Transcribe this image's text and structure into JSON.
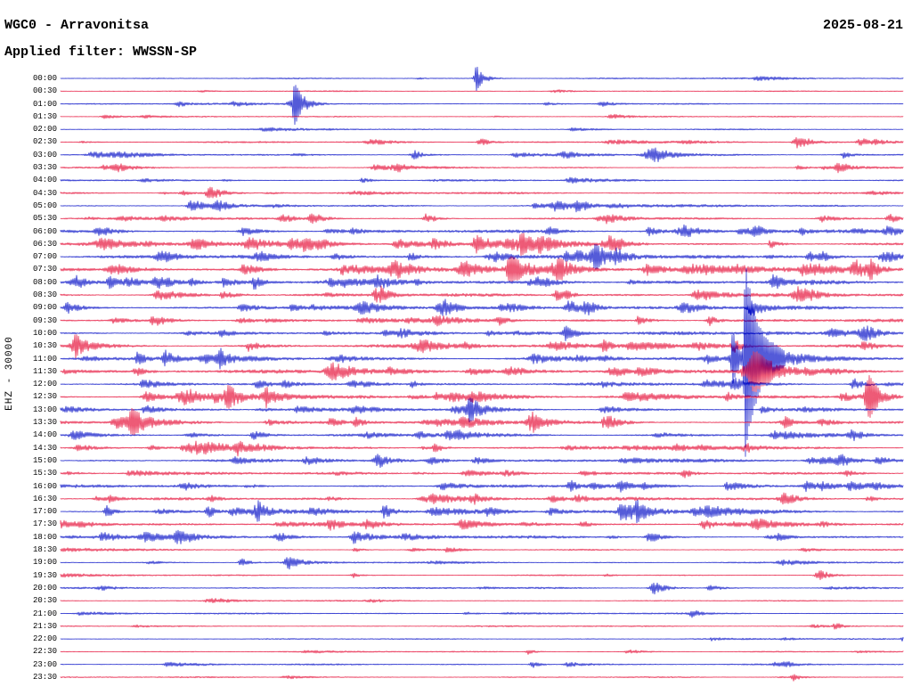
{
  "chart_data": {
    "type": "line",
    "subtype": "helicorder-seismogram",
    "title": "WGC0 - Arravonitsa",
    "date": "2025-08-21",
    "filter_label": "Applied filter: WWSSN-SP",
    "ylabel": "EHZ - 30000",
    "row_duration_minutes": 30,
    "rows_count": 48,
    "legend_position": "none",
    "grid": false,
    "colors": {
      "blue": "#0a14c8",
      "red": "#e6143c",
      "text": "#000000",
      "background": "#ffffff"
    },
    "encoding_note": "each row = 30 min trace; n = base noise half-amplitude px; a = count of small random bursts; ev = major events [position_fraction, amplitude_px, attack_px, decay_px]",
    "rows": [
      {
        "t": "00:00",
        "c": "b",
        "n": 0.7,
        "a": 2,
        "ev": [
          [
            0.494,
            15,
            3,
            8
          ]
        ]
      },
      {
        "t": "00:30",
        "c": "r",
        "n": 0.6,
        "a": 2,
        "ev": []
      },
      {
        "t": "01:00",
        "c": "b",
        "n": 0.8,
        "a": 4,
        "ev": [
          [
            0.14,
            3,
            3,
            12
          ],
          [
            0.278,
            22,
            3,
            10
          ]
        ]
      },
      {
        "t": "01:30",
        "c": "r",
        "n": 0.7,
        "a": 3,
        "ev": [
          [
            0.655,
            3,
            5,
            15
          ]
        ]
      },
      {
        "t": "02:00",
        "c": "b",
        "n": 0.7,
        "a": 3,
        "ev": []
      },
      {
        "t": "02:30",
        "c": "r",
        "n": 0.9,
        "a": 6,
        "ev": [
          [
            0.5,
            4,
            5,
            12
          ],
          [
            0.875,
            8,
            5,
            14
          ],
          [
            0.95,
            5,
            4,
            10
          ]
        ]
      },
      {
        "t": "03:00",
        "c": "b",
        "n": 1.0,
        "a": 6,
        "ev": [
          [
            0.42,
            5,
            4,
            10
          ],
          [
            0.705,
            7,
            7,
            16
          ],
          [
            0.93,
            4,
            3,
            8
          ]
        ]
      },
      {
        "t": "03:30",
        "c": "r",
        "n": 0.9,
        "a": 5,
        "ev": [
          [
            0.4,
            4,
            5,
            10
          ],
          [
            0.925,
            6,
            5,
            12
          ]
        ]
      },
      {
        "t": "04:00",
        "c": "b",
        "n": 0.9,
        "a": 5,
        "ev": []
      },
      {
        "t": "04:30",
        "c": "r",
        "n": 1.0,
        "a": 5,
        "ev": [
          [
            0.178,
            8,
            5,
            14
          ]
        ]
      },
      {
        "t": "05:00",
        "c": "b",
        "n": 1.1,
        "a": 6,
        "ev": [
          [
            0.155,
            6,
            4,
            10
          ],
          [
            0.185,
            7,
            4,
            10
          ],
          [
            0.59,
            6,
            5,
            12
          ],
          [
            0.615,
            6,
            4,
            10
          ]
        ]
      },
      {
        "t": "05:30",
        "c": "r",
        "n": 1.1,
        "a": 6,
        "ev": [
          [
            0.265,
            6,
            5,
            12
          ],
          [
            0.3,
            7,
            5,
            12
          ],
          [
            0.435,
            6,
            4,
            10
          ],
          [
            0.985,
            6,
            4,
            8
          ]
        ]
      },
      {
        "t": "06:00",
        "c": "b",
        "n": 1.6,
        "a": 12,
        "ev": [
          [
            0.58,
            5,
            4,
            10
          ],
          [
            0.7,
            5,
            4,
            10
          ],
          [
            0.825,
            6,
            4,
            10
          ]
        ]
      },
      {
        "t": "06:30",
        "c": "r",
        "n": 1.8,
        "a": 14,
        "ev": [
          [
            0.05,
            6,
            7,
            16
          ],
          [
            0.16,
            7,
            7,
            16
          ],
          [
            0.445,
            6,
            5,
            12
          ],
          [
            0.57,
            6,
            5,
            12
          ],
          [
            0.655,
            7,
            5,
            12
          ]
        ]
      },
      {
        "t": "07:00",
        "c": "b",
        "n": 1.8,
        "a": 14,
        "ev": [
          [
            0.635,
            8,
            5,
            12
          ],
          [
            0.66,
            7,
            4,
            10
          ],
          [
            0.905,
            5,
            4,
            10
          ]
        ]
      },
      {
        "t": "07:30",
        "c": "r",
        "n": 2.0,
        "a": 16,
        "ev": [
          [
            0.4,
            9,
            9,
            18
          ],
          [
            0.48,
            9,
            7,
            16
          ],
          [
            0.535,
            7,
            5,
            12
          ],
          [
            0.59,
            6,
            4,
            10
          ],
          [
            0.945,
            9,
            6,
            12
          ],
          [
            0.962,
            8,
            4,
            10
          ]
        ]
      },
      {
        "t": "08:00",
        "c": "b",
        "n": 1.8,
        "a": 14,
        "ev": [
          [
            0.02,
            7,
            7,
            14
          ],
          [
            0.06,
            7,
            5,
            12
          ],
          [
            0.115,
            7,
            5,
            12
          ],
          [
            0.23,
            8,
            3,
            8
          ],
          [
            0.375,
            5,
            3,
            8
          ]
        ]
      },
      {
        "t": "08:30",
        "c": "r",
        "n": 1.5,
        "a": 10,
        "ev": [
          [
            0.375,
            7,
            4,
            10
          ],
          [
            0.59,
            7,
            4,
            10
          ],
          [
            0.875,
            8,
            5,
            12
          ]
        ]
      },
      {
        "t": "09:00",
        "c": "b",
        "n": 1.7,
        "a": 12,
        "ev": [
          [
            0.45,
            9,
            4,
            10
          ],
          [
            0.605,
            9,
            5,
            12
          ],
          [
            0.625,
            8,
            4,
            10
          ],
          [
            0.82,
            6,
            4,
            10
          ]
        ]
      },
      {
        "t": "09:30",
        "c": "r",
        "n": 1.5,
        "a": 10,
        "ev": [
          [
            0.52,
            5,
            3,
            8
          ],
          [
            0.77,
            6,
            3,
            8
          ]
        ]
      },
      {
        "t": "10:00",
        "c": "b",
        "n": 1.6,
        "a": 10,
        "ev": [
          [
            0.6,
            8,
            5,
            12
          ],
          [
            0.955,
            7,
            7,
            16
          ]
        ]
      },
      {
        "t": "10:30",
        "c": "r",
        "n": 1.6,
        "a": 10,
        "ev": [
          [
            0.018,
            12,
            5,
            14
          ],
          [
            0.645,
            7,
            4,
            10
          ],
          [
            0.8,
            6,
            4,
            10
          ]
        ]
      },
      {
        "t": "11:00",
        "c": "b",
        "n": 1.6,
        "a": 12,
        "ev": [
          [
            0.092,
            7,
            3,
            8
          ],
          [
            0.125,
            7,
            3,
            8
          ],
          [
            0.19,
            8,
            3,
            8
          ],
          [
            0.798,
            30,
            2,
            6
          ],
          [
            0.813,
            105,
            2,
            12
          ],
          [
            0.825,
            10,
            8,
            60
          ]
        ]
      },
      {
        "t": "11:30",
        "c": "r",
        "n": 1.7,
        "a": 12,
        "ev": [
          [
            0.09,
            5,
            3,
            8
          ],
          [
            0.824,
            22,
            7,
            26
          ]
        ]
      },
      {
        "t": "12:00",
        "c": "b",
        "n": 1.5,
        "a": 10,
        "ev": [
          [
            0.8,
            6,
            4,
            10
          ]
        ]
      },
      {
        "t": "12:30",
        "c": "r",
        "n": 1.7,
        "a": 12,
        "ev": [
          [
            0.145,
            9,
            6,
            14
          ],
          [
            0.2,
            9,
            5,
            12
          ],
          [
            0.245,
            10,
            6,
            14
          ],
          [
            0.96,
            22,
            5,
            12
          ]
        ]
      },
      {
        "t": "13:00",
        "c": "b",
        "n": 1.5,
        "a": 10,
        "ev": [
          [
            0.486,
            12,
            4,
            14
          ]
        ]
      },
      {
        "t": "13:30",
        "c": "r",
        "n": 1.6,
        "a": 12,
        "ev": [
          [
            0.086,
            8,
            5,
            12
          ],
          [
            0.56,
            9,
            6,
            14
          ],
          [
            0.86,
            6,
            4,
            10
          ]
        ]
      },
      {
        "t": "14:00",
        "c": "b",
        "n": 1.4,
        "a": 10,
        "ev": [
          [
            0.94,
            6,
            4,
            10
          ]
        ]
      },
      {
        "t": "14:30",
        "c": "r",
        "n": 1.4,
        "a": 10,
        "ev": [
          [
            0.21,
            7,
            4,
            10
          ],
          [
            0.445,
            6,
            3,
            8
          ],
          [
            0.73,
            5,
            3,
            8
          ]
        ]
      },
      {
        "t": "15:00",
        "c": "b",
        "n": 1.4,
        "a": 8,
        "ev": [
          [
            0.378,
            8,
            5,
            12
          ],
          [
            0.925,
            6,
            4,
            10
          ]
        ]
      },
      {
        "t": "15:30",
        "c": "r",
        "n": 1.3,
        "a": 8,
        "ev": [
          [
            0.74,
            5,
            3,
            8
          ]
        ]
      },
      {
        "t": "16:00",
        "c": "b",
        "n": 1.5,
        "a": 10,
        "ev": [
          [
            0.605,
            7,
            4,
            10
          ],
          [
            0.665,
            7,
            4,
            10
          ],
          [
            0.885,
            6,
            4,
            10
          ]
        ]
      },
      {
        "t": "16:30",
        "c": "r",
        "n": 1.5,
        "a": 10,
        "ev": [
          [
            0.49,
            5,
            3,
            8
          ],
          [
            0.86,
            5,
            3,
            8
          ]
        ]
      },
      {
        "t": "17:00",
        "c": "b",
        "n": 1.6,
        "a": 12,
        "ev": [
          [
            0.055,
            7,
            3,
            8
          ],
          [
            0.175,
            8,
            3,
            8
          ],
          [
            0.235,
            9,
            4,
            10
          ],
          [
            0.385,
            7,
            4,
            10
          ],
          [
            0.685,
            7,
            4,
            10
          ]
        ]
      },
      {
        "t": "17:30",
        "c": "r",
        "n": 1.5,
        "a": 10,
        "ev": [
          [
            0.32,
            6,
            4,
            10
          ],
          [
            0.765,
            7,
            4,
            10
          ]
        ]
      },
      {
        "t": "18:00",
        "c": "b",
        "n": 1.4,
        "a": 10,
        "ev": [
          [
            0.14,
            7,
            4,
            10
          ],
          [
            0.35,
            6,
            4,
            10
          ],
          [
            0.7,
            7,
            4,
            10
          ]
        ]
      },
      {
        "t": "18:30",
        "c": "r",
        "n": 0.8,
        "a": 4,
        "ev": [
          [
            0.35,
            3,
            3,
            8
          ]
        ]
      },
      {
        "t": "19:00",
        "c": "b",
        "n": 0.9,
        "a": 4,
        "ev": [
          [
            0.215,
            5,
            3,
            8
          ],
          [
            0.27,
            9,
            4,
            12
          ]
        ]
      },
      {
        "t": "19:30",
        "c": "r",
        "n": 0.8,
        "a": 4,
        "ev": [
          [
            0.9,
            6,
            4,
            10
          ]
        ]
      },
      {
        "t": "20:00",
        "c": "b",
        "n": 0.9,
        "a": 4,
        "ev": [
          [
            0.705,
            8,
            5,
            12
          ]
        ]
      },
      {
        "t": "20:30",
        "c": "r",
        "n": 0.7,
        "a": 3,
        "ev": []
      },
      {
        "t": "21:00",
        "c": "b",
        "n": 0.8,
        "a": 3,
        "ev": [
          [
            0.75,
            4,
            3,
            8
          ]
        ]
      },
      {
        "t": "21:30",
        "c": "r",
        "n": 0.7,
        "a": 2,
        "ev": [
          [
            0.92,
            4,
            3,
            8
          ]
        ]
      },
      {
        "t": "22:00",
        "c": "b",
        "n": 0.7,
        "a": 3,
        "ev": []
      },
      {
        "t": "22:30",
        "c": "r",
        "n": 0.7,
        "a": 3,
        "ev": [
          [
            0.555,
            3,
            3,
            8
          ]
        ]
      },
      {
        "t": "23:00",
        "c": "b",
        "n": 0.8,
        "a": 3,
        "ev": [
          [
            0.56,
            4,
            3,
            8
          ],
          [
            0.86,
            3,
            3,
            8
          ]
        ]
      },
      {
        "t": "23:30",
        "c": "r",
        "n": 0.7,
        "a": 2,
        "ev": [
          [
            0.87,
            4,
            3,
            8
          ]
        ]
      }
    ]
  }
}
